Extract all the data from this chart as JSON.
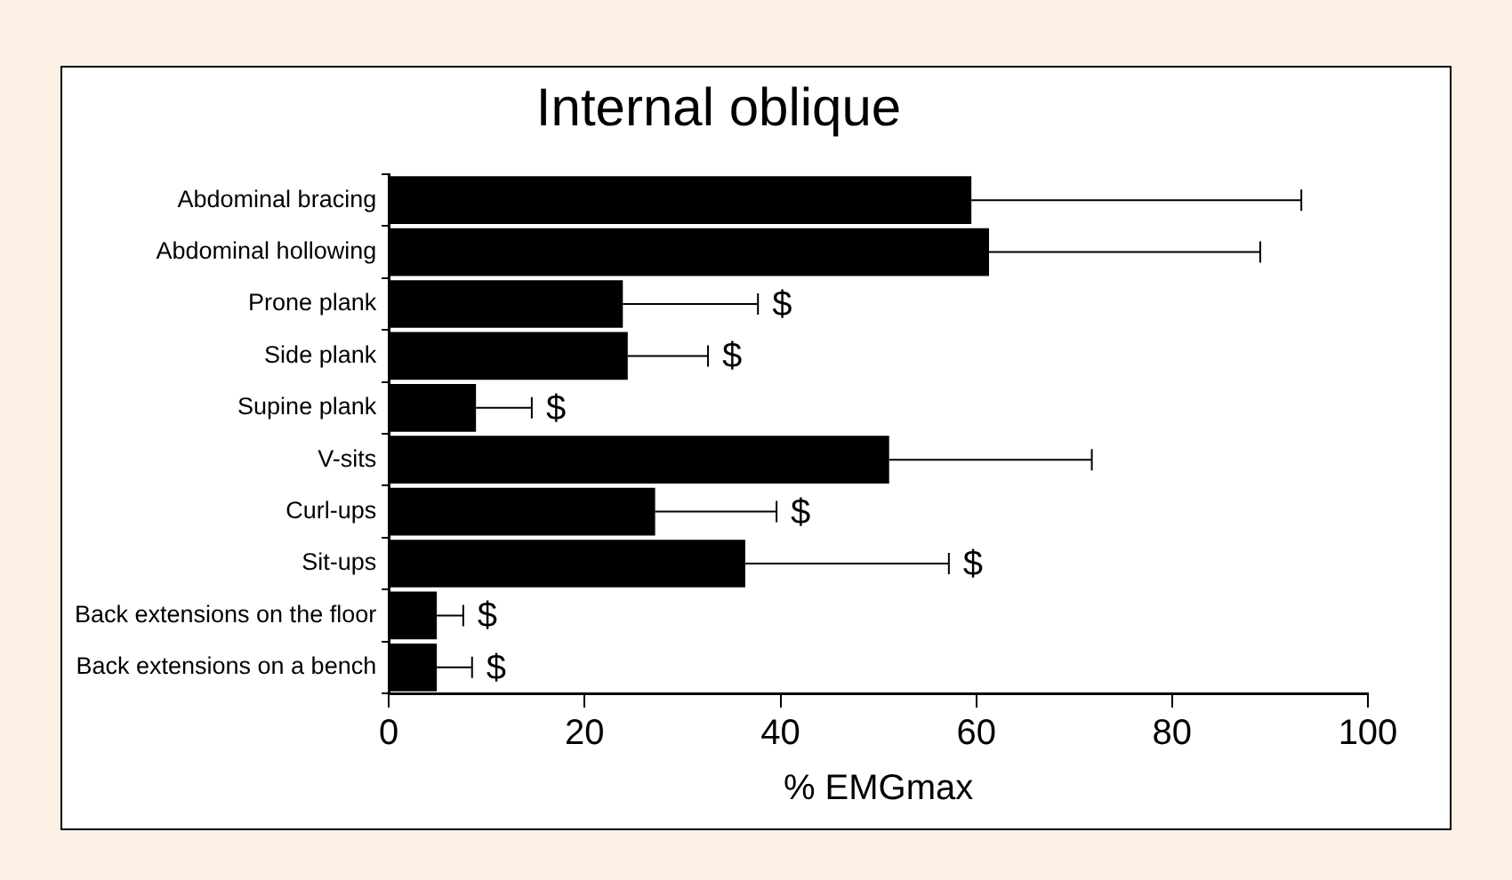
{
  "chart_data": {
    "type": "bar",
    "orientation": "horizontal",
    "title": "Internal oblique",
    "xlabel": "% EMGmax",
    "categories": [
      "Abdominal bracing",
      "Abdominal hollowing",
      "Prone plank",
      "Side plank",
      "Supine plank",
      "V-sits",
      "Curl-ups",
      "Sit-ups",
      "Back extensions on the floor",
      "Back extensions on a bench"
    ],
    "values": [
      59.5,
      61.3,
      23.9,
      24.4,
      8.9,
      51.1,
      27.2,
      36.4,
      4.9,
      4.9
    ],
    "errors": [
      [
        59.5,
        93.2
      ],
      [
        61.3,
        89.0
      ],
      [
        23.9,
        37.7
      ],
      [
        24.4,
        32.6
      ],
      [
        8.9,
        14.6
      ],
      [
        51.1,
        71.8
      ],
      [
        27.2,
        39.6
      ],
      [
        36.4,
        57.2
      ],
      [
        4.9,
        7.6
      ],
      [
        4.9,
        8.5
      ]
    ],
    "color": "#000000",
    "xlim": [
      0,
      100
    ],
    "xticks": [
      0,
      20,
      40,
      60,
      80,
      100
    ],
    "grid": false,
    "legend": false,
    "annotations": [
      {
        "text": "$",
        "x": 37.7,
        "y": "Prone plank"
      },
      {
        "text": "$",
        "x": 32.6,
        "y": "Side plank"
      },
      {
        "text": "$",
        "x": 14.6,
        "y": "Supine plank"
      },
      {
        "text": "$",
        "x": 39.6,
        "y": "Curl-ups"
      },
      {
        "text": "$",
        "x": 57.2,
        "y": "Sit-ups"
      },
      {
        "text": "$",
        "x": 7.6,
        "y": "Back extensions on the floor"
      },
      {
        "text": "$",
        "x": 8.5,
        "y": "Back extensions on a bench"
      }
    ]
  }
}
